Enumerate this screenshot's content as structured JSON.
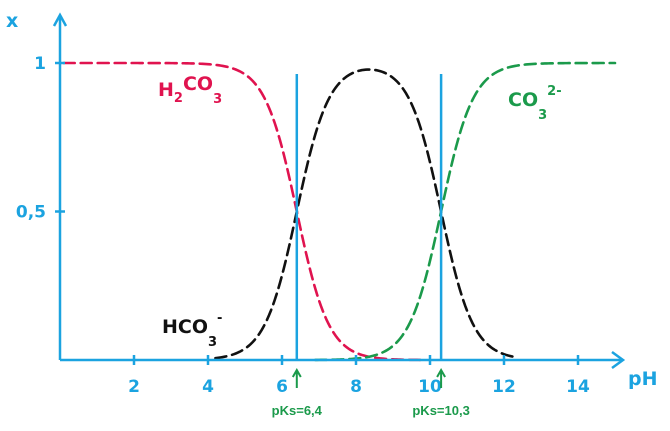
{
  "chart_data": {
    "type": "line",
    "xlabel": "pH",
    "ylabel": "x",
    "xlim": [
      0,
      15
    ],
    "ylim": [
      0,
      1
    ],
    "x_ticks": [
      2,
      4,
      6,
      8,
      10,
      12,
      14
    ],
    "y_ticks": [
      {
        "value": 0.5,
        "label": "0,5"
      },
      {
        "value": 1,
        "label": "1"
      }
    ],
    "pk_lines": [
      {
        "x": 6.4,
        "label": "pKs=6,4"
      },
      {
        "x": 10.3,
        "label": "pKs=10,3"
      }
    ],
    "series": [
      {
        "id": "h2co3",
        "color": "#e0134f",
        "label_main": "H",
        "label_sub": "2",
        "label_mid": "CO",
        "label_sub2": "3",
        "label_sup": ""
      },
      {
        "id": "hco3",
        "color": "#111111",
        "label_main": "",
        "label_sub": "",
        "label_mid": "HCO",
        "label_sub2": "3",
        "label_sup": "-"
      },
      {
        "id": "co3",
        "color": "#1b9a4b",
        "label_main": "",
        "label_sub": "",
        "label_mid": "CO",
        "label_sub2": "3",
        "label_sup": "2-"
      }
    ],
    "grid": false,
    "colors": {
      "axis": "#1ba3e0",
      "pk": "#1b9a4b"
    }
  }
}
